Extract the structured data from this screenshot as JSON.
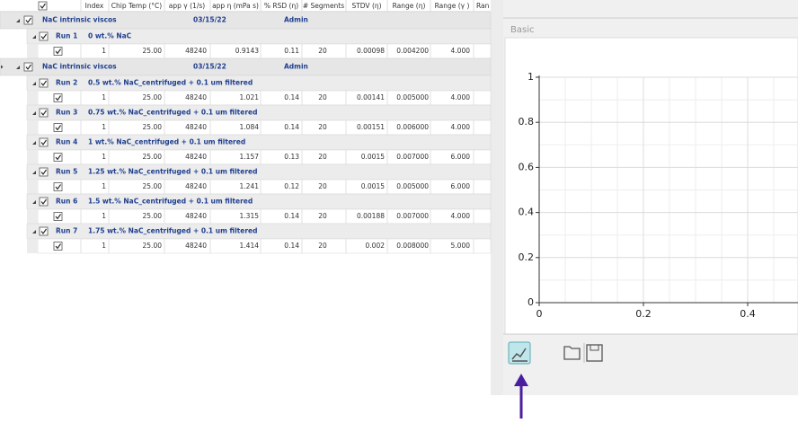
{
  "table": {
    "columns": [
      "Index",
      "Chip Temp (°C)",
      "app γ (1/s)",
      "app η (mPa s)",
      "% RSD (η)",
      "# Segments",
      "STDV (η)",
      "Range (η)",
      "Range (γ )",
      "Ran"
    ],
    "groups": [
      {
        "name": "NaC intrinsic viscos",
        "date": "03/15/22",
        "user": "Admin",
        "runs": [
          {
            "name": "Run 1",
            "desc": "0 wt.% NaC",
            "row": [
              "1",
              "25.00",
              "48240",
              "0.9143",
              "0.11",
              "20",
              "0.00098",
              "0.004200",
              "4.000"
            ]
          }
        ]
      },
      {
        "name": "NaC intrinsic viscos",
        "date": "03/15/22",
        "user": "Admin",
        "runs": [
          {
            "name": "Run 2",
            "desc": "0.5 wt.% NaC_centrifuged + 0.1 um filtered",
            "row": [
              "1",
              "25.00",
              "48240",
              "1.021",
              "0.14",
              "20",
              "0.00141",
              "0.005000",
              "4.000"
            ]
          },
          {
            "name": "Run 3",
            "desc": "0.75 wt.% NaC_centrifuged + 0.1 um filtered",
            "row": [
              "1",
              "25.00",
              "48240",
              "1.084",
              "0.14",
              "20",
              "0.00151",
              "0.006000",
              "4.000"
            ]
          },
          {
            "name": "Run 4",
            "desc": "1 wt.% NaC_centrifuged + 0.1 um filtered",
            "row": [
              "1",
              "25.00",
              "48240",
              "1.157",
              "0.13",
              "20",
              "0.0015",
              "0.007000",
              "6.000"
            ]
          },
          {
            "name": "Run 5",
            "desc": "1.25 wt.% NaC_centrifuged + 0.1 um filtered",
            "row": [
              "1",
              "25.00",
              "48240",
              "1.241",
              "0.12",
              "20",
              "0.0015",
              "0.005000",
              "6.000"
            ]
          },
          {
            "name": "Run 6",
            "desc": "1.5 wt.% NaC_centrifuged + 0.1 um filtered",
            "row": [
              "1",
              "25.00",
              "48240",
              "1.315",
              "0.14",
              "20",
              "0.00188",
              "0.007000",
              "4.000"
            ]
          },
          {
            "name": "Run 7",
            "desc": "1.75 wt.% NaC_centrifuged + 0.1 um filtered",
            "row": [
              "1",
              "25.00",
              "48240",
              "1.414",
              "0.14",
              "20",
              "0.002",
              "0.008000",
              "5.000"
            ]
          }
        ]
      }
    ]
  },
  "panel": {
    "tab": "Basic",
    "chart": {
      "xlim": [
        0,
        0.5
      ],
      "ylim": [
        0,
        1
      ],
      "xticks": [
        0,
        0.2,
        0.4
      ],
      "yticks": [
        0,
        0.2,
        0.4,
        0.6,
        0.8,
        1
      ]
    }
  }
}
